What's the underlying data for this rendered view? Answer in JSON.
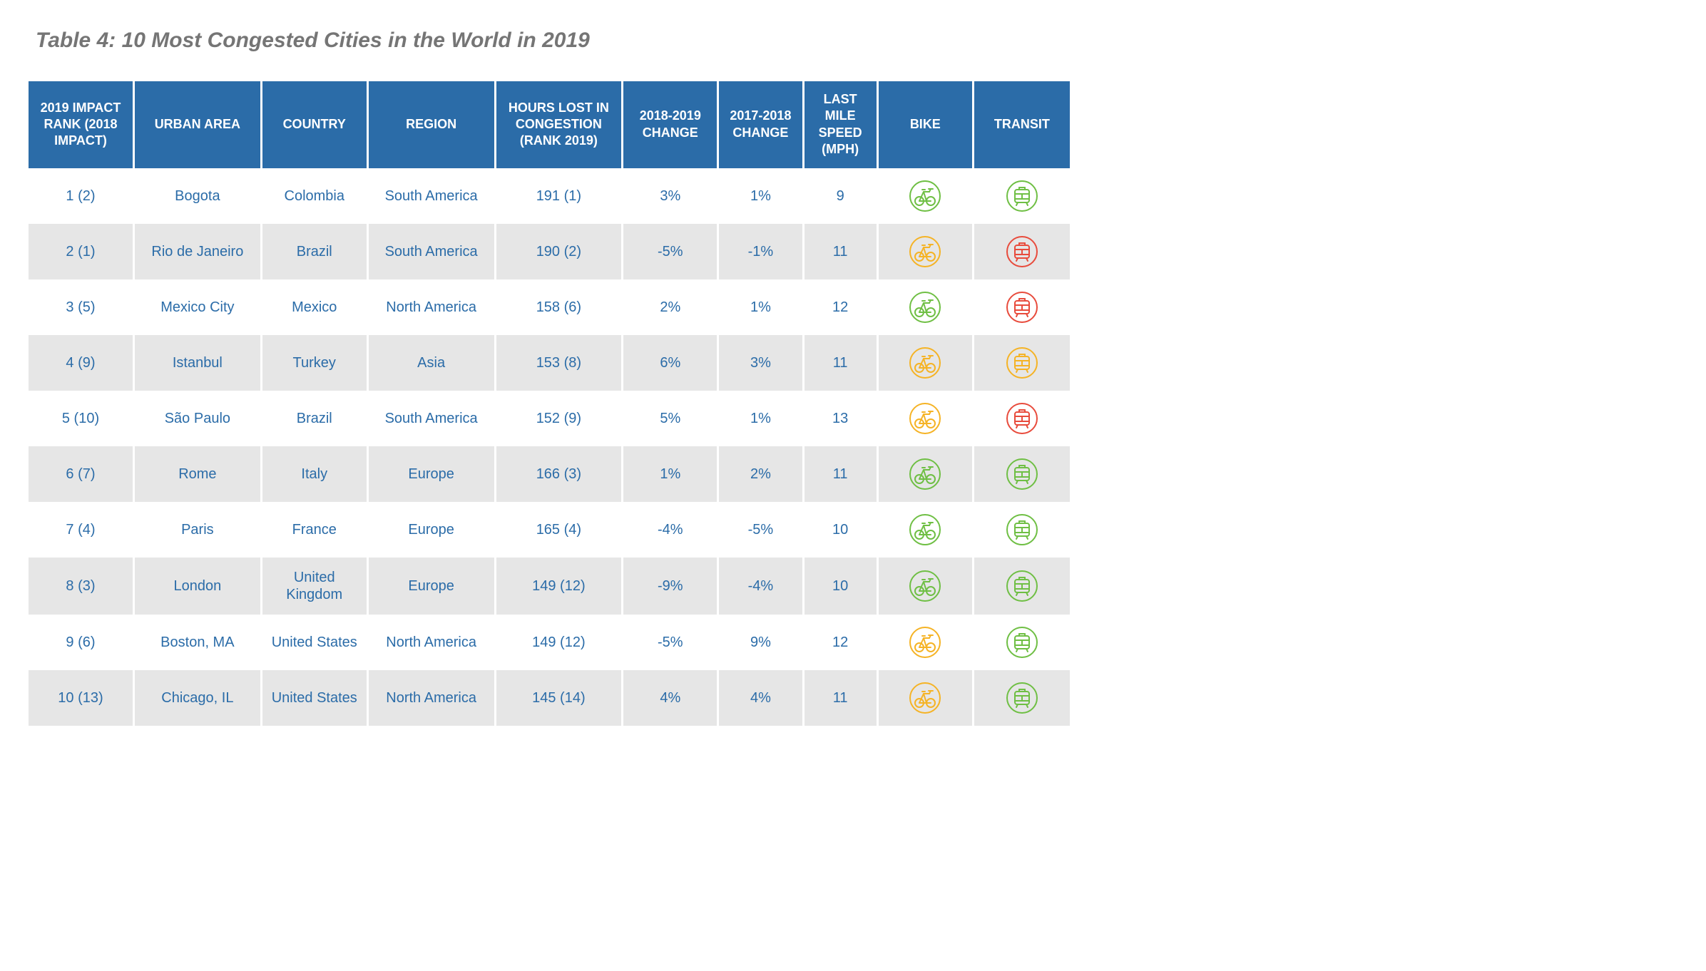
{
  "title": "Table 4: 10 Most Congested Cities in the World in 2019",
  "colors": {
    "header_bg": "#2b6ca8",
    "header_text": "#ffffff",
    "cell_text": "#2b6ca8",
    "row_alt_bg": "#e6e6e6",
    "title_color": "#757575",
    "icon_green": "#6fbf44",
    "icon_yellow": "#f5b325",
    "icon_red": "#e84b3c"
  },
  "columns": [
    "2019 IMPACT RANK (2018 IMPACT)",
    "URBAN AREA",
    "COUNTRY",
    "REGION",
    "HOURS LOST IN CONGESTION (RANK 2019)",
    "2018-2019 CHANGE",
    "2017-2018 CHANGE",
    "LAST MILE SPEED (MPH)",
    "BIKE",
    "TRANSIT"
  ],
  "rows": [
    {
      "rank": "1 (2)",
      "urban": "Bogota",
      "country": "Colombia",
      "region": "South America",
      "hours": "191 (1)",
      "chg1": "3%",
      "chg2": "1%",
      "speed": "9",
      "bike": "green",
      "transit": "green"
    },
    {
      "rank": "2 (1)",
      "urban": "Rio de Janeiro",
      "country": "Brazil",
      "region": "South America",
      "hours": "190 (2)",
      "chg1": "-5%",
      "chg2": "-1%",
      "speed": "11",
      "bike": "yellow",
      "transit": "red"
    },
    {
      "rank": "3 (5)",
      "urban": "Mexico City",
      "country": "Mexico",
      "region": "North America",
      "hours": "158 (6)",
      "chg1": "2%",
      "chg2": "1%",
      "speed": "12",
      "bike": "green",
      "transit": "red"
    },
    {
      "rank": "4 (9)",
      "urban": "Istanbul",
      "country": "Turkey",
      "region": "Asia",
      "hours": "153 (8)",
      "chg1": "6%",
      "chg2": "3%",
      "speed": "11",
      "bike": "yellow",
      "transit": "yellow"
    },
    {
      "rank": "5 (10)",
      "urban": "São Paulo",
      "country": "Brazil",
      "region": "South America",
      "hours": "152 (9)",
      "chg1": "5%",
      "chg2": "1%",
      "speed": "13",
      "bike": "yellow",
      "transit": "red"
    },
    {
      "rank": "6 (7)",
      "urban": "Rome",
      "country": "Italy",
      "region": "Europe",
      "hours": "166 (3)",
      "chg1": "1%",
      "chg2": "2%",
      "speed": "11",
      "bike": "green",
      "transit": "green"
    },
    {
      "rank": "7 (4)",
      "urban": "Paris",
      "country": "France",
      "region": "Europe",
      "hours": "165 (4)",
      "chg1": "-4%",
      "chg2": "-5%",
      "speed": "10",
      "bike": "green",
      "transit": "green"
    },
    {
      "rank": "8 (3)",
      "urban": "London",
      "country": "United Kingdom",
      "region": "Europe",
      "hours": "149 (12)",
      "chg1": "-9%",
      "chg2": "-4%",
      "speed": "10",
      "bike": "green",
      "transit": "green"
    },
    {
      "rank": "9 (6)",
      "urban": "Boston, MA",
      "country": "United States",
      "region": "North America",
      "hours": "149 (12)",
      "chg1": "-5%",
      "chg2": "9%",
      "speed": "12",
      "bike": "yellow",
      "transit": "green"
    },
    {
      "rank": "10 (13)",
      "urban": "Chicago, IL",
      "country": "United States",
      "region": "North America",
      "hours": "145 (14)",
      "chg1": "4%",
      "chg2": "4%",
      "speed": "11",
      "bike": "yellow",
      "transit": "green"
    }
  ],
  "typography": {
    "title_fontsize": 30,
    "header_fontsize": 18,
    "cell_fontsize": 20
  }
}
